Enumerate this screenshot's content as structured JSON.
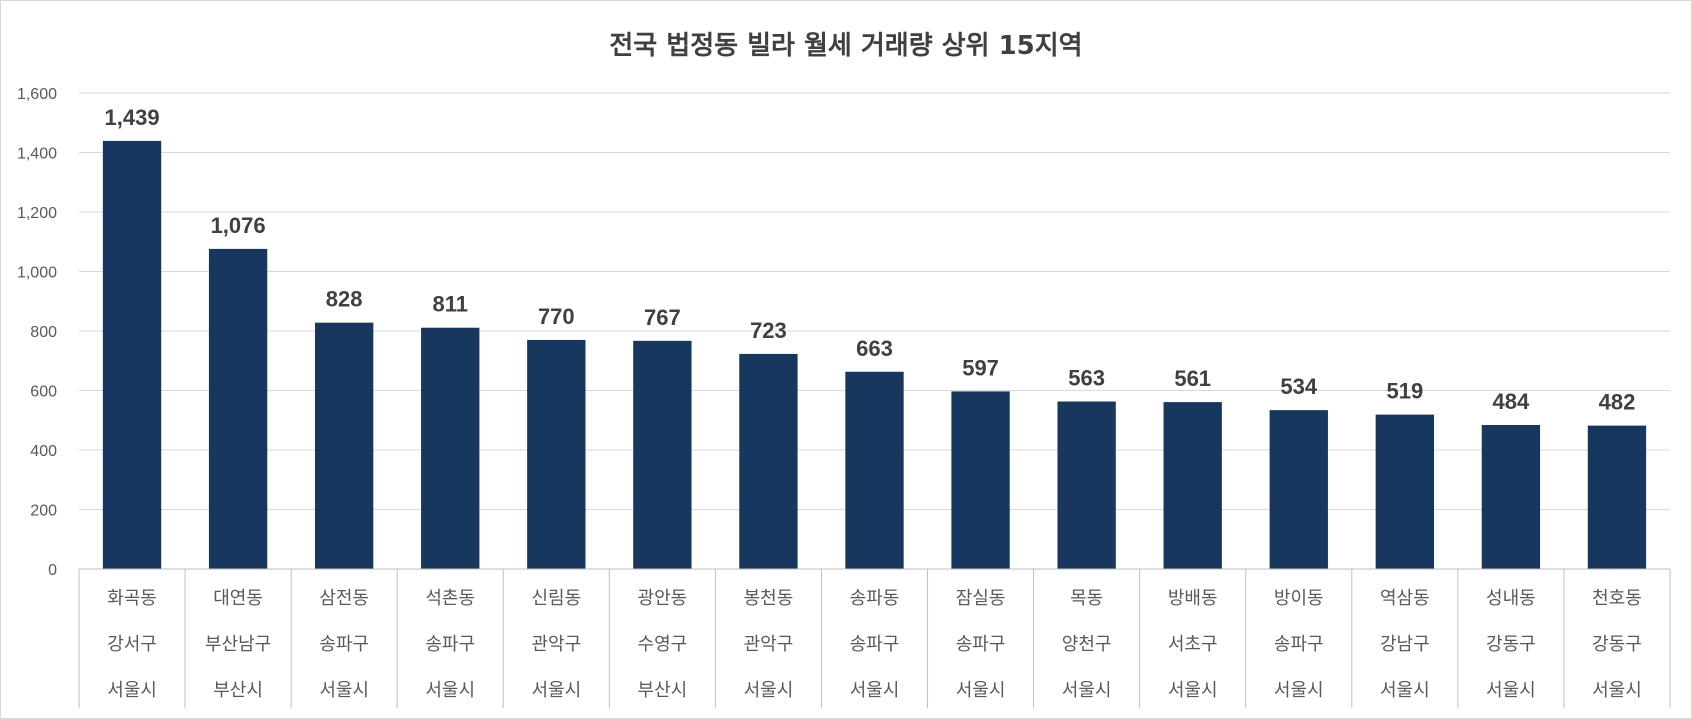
{
  "chart_data": {
    "type": "bar",
    "title": "전국 법정동 빌라 월세 거래량 상위 15지역",
    "xlabel": "",
    "ylabel": "",
    "ylim": [
      0,
      1600
    ],
    "yticks": [
      "0",
      "200",
      "400",
      "600",
      "800",
      "1,000",
      "1,200",
      "1,400",
      "1,600"
    ],
    "grid": true,
    "legend": "none",
    "bar_color": "#17375e",
    "categories": [
      {
        "dong": "화곡동",
        "gu": "강서구",
        "si": "서울시"
      },
      {
        "dong": "대연동",
        "gu": "부산남구",
        "si": "부산시"
      },
      {
        "dong": "삼전동",
        "gu": "송파구",
        "si": "서울시"
      },
      {
        "dong": "석촌동",
        "gu": "송파구",
        "si": "서울시"
      },
      {
        "dong": "신림동",
        "gu": "관악구",
        "si": "서울시"
      },
      {
        "dong": "광안동",
        "gu": "수영구",
        "si": "부산시"
      },
      {
        "dong": "봉천동",
        "gu": "관악구",
        "si": "서울시"
      },
      {
        "dong": "송파동",
        "gu": "송파구",
        "si": "서울시"
      },
      {
        "dong": "잠실동",
        "gu": "송파구",
        "si": "서울시"
      },
      {
        "dong": "목동",
        "gu": "양천구",
        "si": "서울시"
      },
      {
        "dong": "방배동",
        "gu": "서초구",
        "si": "서울시"
      },
      {
        "dong": "방이동",
        "gu": "송파구",
        "si": "서울시"
      },
      {
        "dong": "역삼동",
        "gu": "강남구",
        "si": "서울시"
      },
      {
        "dong": "성내동",
        "gu": "강동구",
        "si": "서울시"
      },
      {
        "dong": "천호동",
        "gu": "강동구",
        "si": "서울시"
      }
    ],
    "values": [
      1439,
      1076,
      828,
      811,
      770,
      767,
      723,
      663,
      597,
      563,
      561,
      534,
      519,
      484,
      482
    ],
    "data_labels": [
      "1,439",
      "1,076",
      "828",
      "811",
      "770",
      "767",
      "723",
      "663",
      "597",
      "563",
      "561",
      "534",
      "519",
      "484",
      "482"
    ]
  }
}
